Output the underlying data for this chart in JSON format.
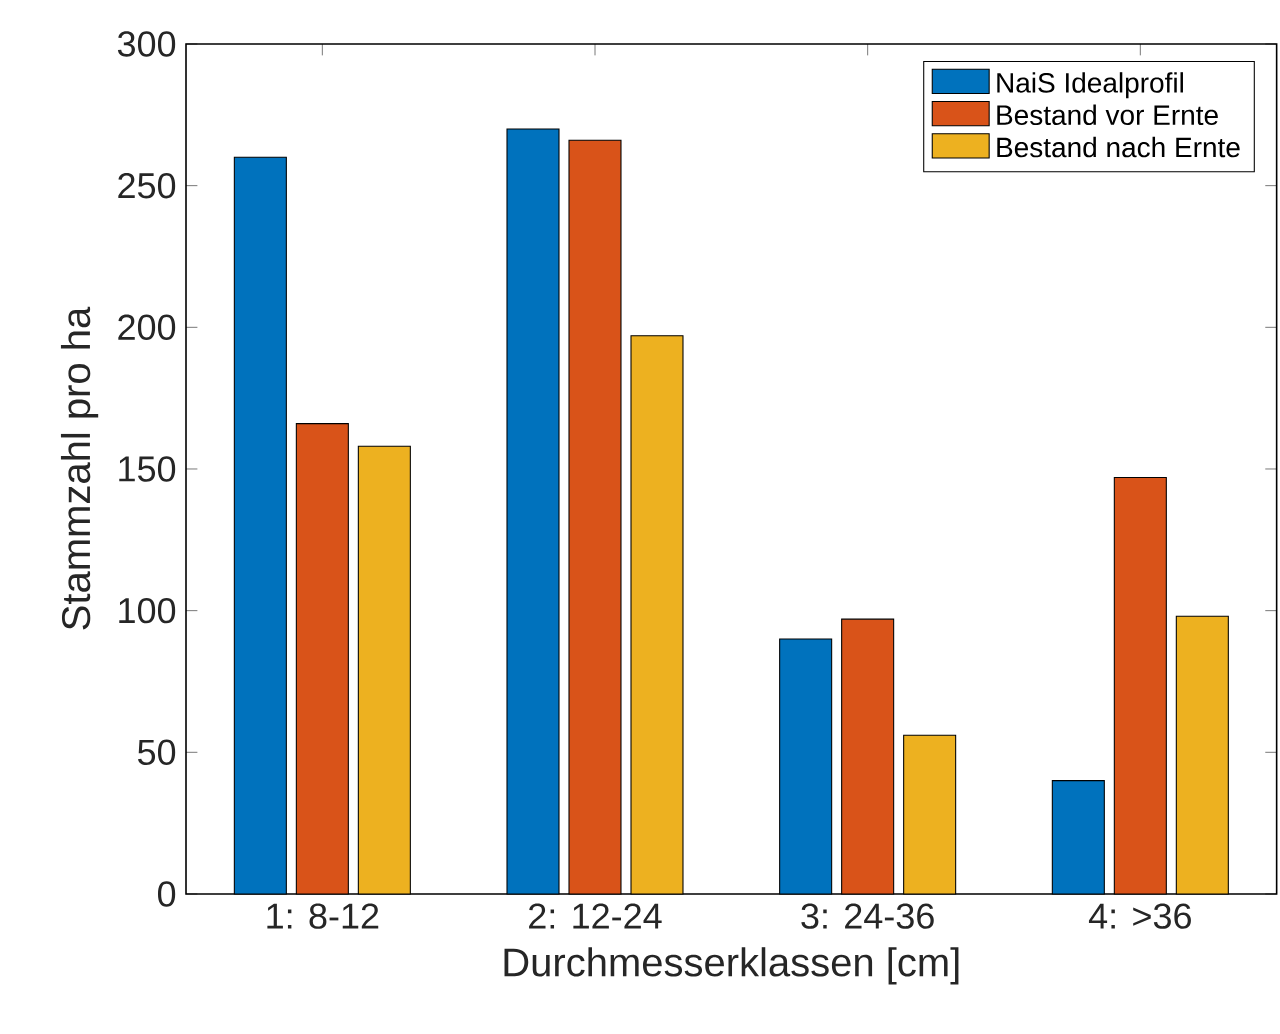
{
  "chart_data": {
    "type": "bar",
    "xlabel": "Durchmesserklassen [cm]",
    "ylabel": "Stammzahl pro ha",
    "categories": [
      "1: 8-12",
      "2: 12-24",
      "3: 24-36",
      "4: >36"
    ],
    "series": [
      {
        "name": "NaiS Idealprofil",
        "color": "#0072bd",
        "values": [
          260,
          270,
          90,
          40
        ]
      },
      {
        "name": "Bestand vor Ernte",
        "color": "#d95319",
        "values": [
          166,
          266,
          97,
          147
        ]
      },
      {
        "name": "Bestand nach Ernte",
        "color": "#edb120",
        "values": [
          158,
          197,
          56,
          98
        ]
      }
    ],
    "ylim": [
      0,
      300
    ],
    "yticks": [
      0,
      50,
      100,
      150,
      200,
      250,
      300
    ],
    "grid": false,
    "legend": "top right"
  }
}
